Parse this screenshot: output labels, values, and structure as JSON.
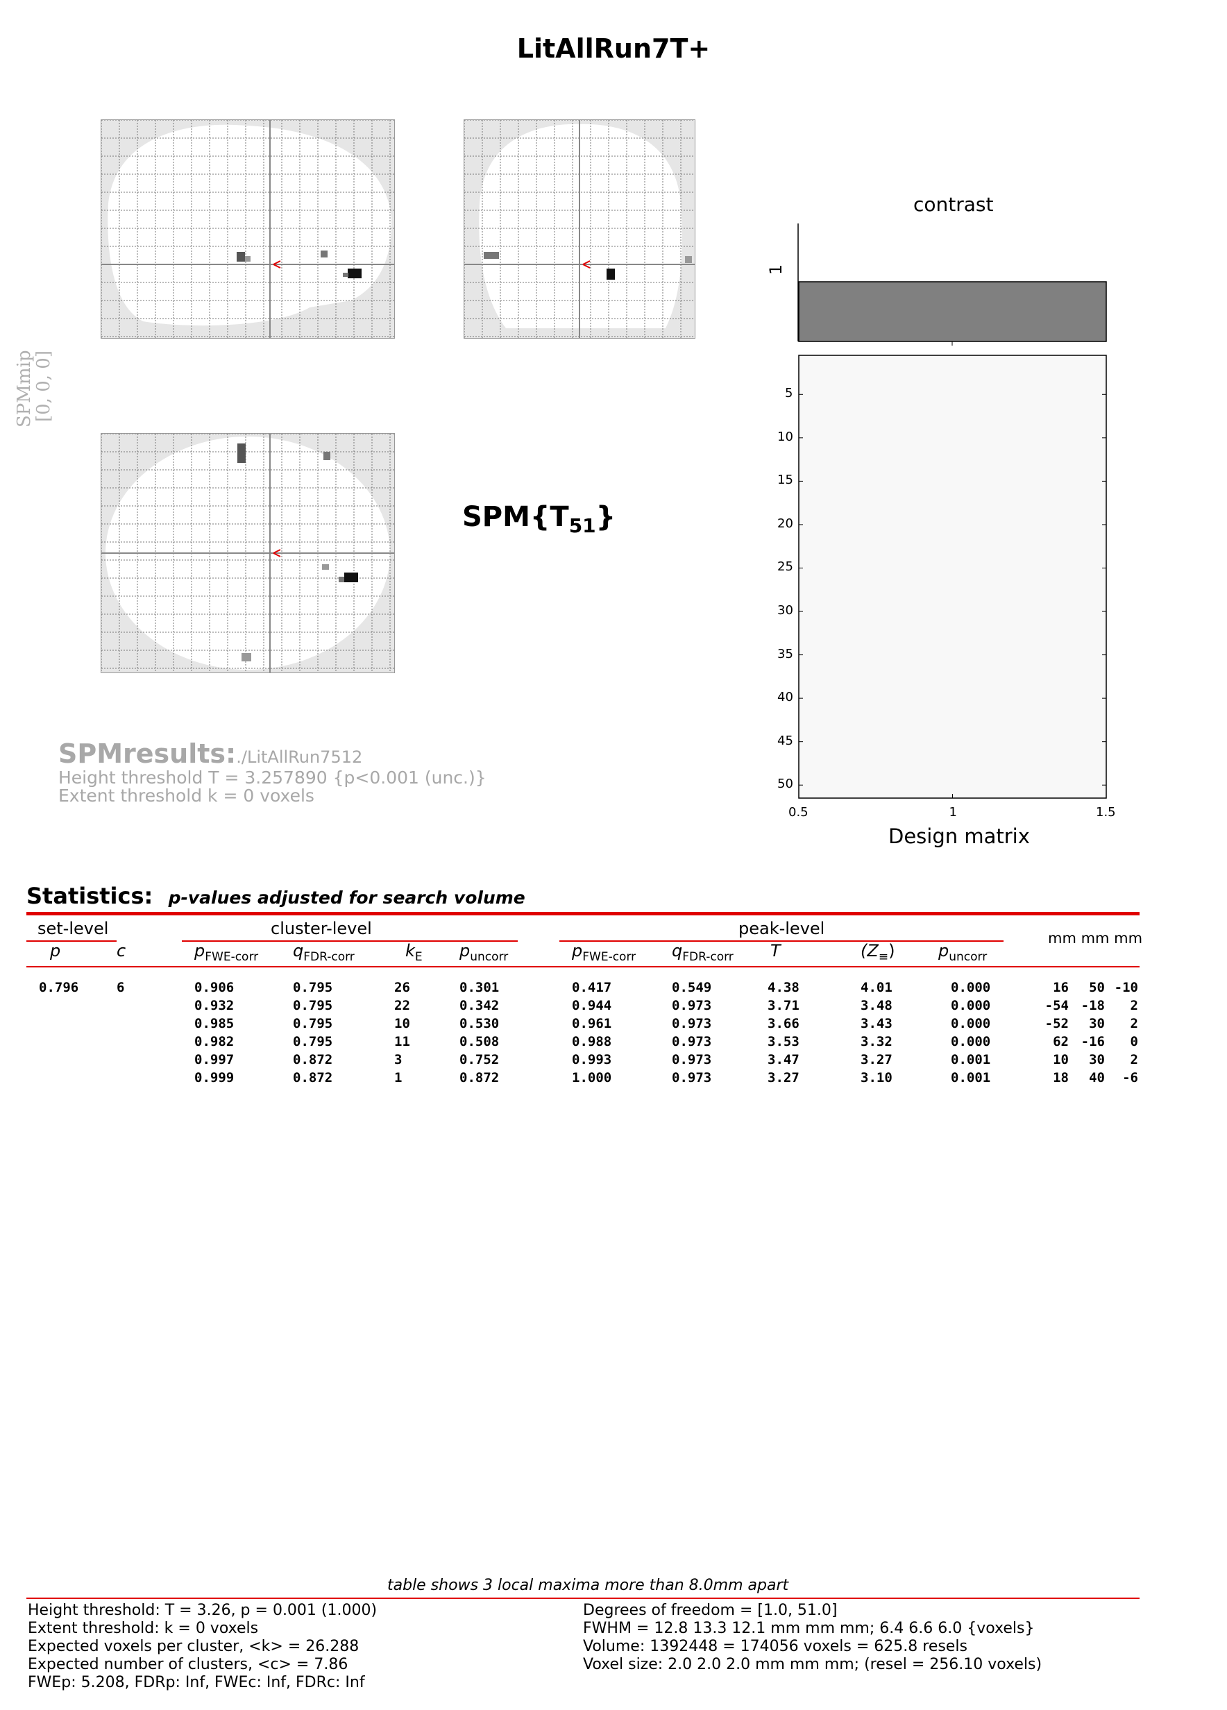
{
  "title": "LitAllRun7T+",
  "spm_mip_label": "SPMmip",
  "spm_mip_coords": "[0, 0, 0]",
  "spm_stat": {
    "name": "SPM{T",
    "df": "51",
    "close": "}"
  },
  "results": {
    "heading": "SPMresults:",
    "path": "./LitAllRun7512",
    "height_threshold": "Height threshold T = 3.257890  {p<0.001 (unc.)}",
    "extent_threshold": "Extent threshold k = 0 voxels"
  },
  "contrast_panel": {
    "title": "contrast",
    "contrast_tick": "1",
    "contrast_value": 1,
    "y_ticks": [
      "5",
      "10",
      "15",
      "20",
      "25",
      "30",
      "35",
      "40",
      "45",
      "50"
    ],
    "x_ticks": [
      "0.5",
      "1",
      "1.5"
    ],
    "xlabel": "Design matrix"
  },
  "statistics": {
    "heading": "Statistics:",
    "subheading": "p-values adjusted for search volume",
    "groups": {
      "set": "set-level",
      "cluster": "cluster-level",
      "peak": "peak-level",
      "coords": "mm mm mm"
    },
    "cols": {
      "set_p": "p",
      "set_c": "c",
      "cl_pfwe": "p",
      "cl_pfwe_sub": "FWE-corr",
      "cl_qfdr": "q",
      "cl_qfdr_sub": "FDR-corr",
      "cl_ke": "k",
      "cl_ke_sub": "E",
      "cl_punc": "p",
      "cl_punc_sub": "uncorr",
      "pk_pfwe": "p",
      "pk_pfwe_sub": "FWE-corr",
      "pk_qfdr": "q",
      "pk_qfdr_sub": "FDR-corr",
      "pk_t": "T",
      "pk_z": "(Z",
      "pk_z_sub": "≡",
      "pk_z_close": ")",
      "pk_punc": "p",
      "pk_punc_sub": "uncorr"
    },
    "set_level": {
      "p": "0.796",
      "c": "6"
    },
    "rows": [
      {
        "cl_pfwe": "0.906",
        "cl_qfdr": "0.795",
        "ke": "26",
        "cl_punc": "0.301",
        "pk_pfwe": "0.417",
        "pk_qfdr": "0.549",
        "t": "4.38",
        "z": "4.01",
        "pk_punc": "0.000",
        "x": "16",
        "y": "50",
        "zc": "-10"
      },
      {
        "cl_pfwe": "0.932",
        "cl_qfdr": "0.795",
        "ke": "22",
        "cl_punc": "0.342",
        "pk_pfwe": "0.944",
        "pk_qfdr": "0.973",
        "t": "3.71",
        "z": "3.48",
        "pk_punc": "0.000",
        "x": "-54",
        "y": "-18",
        "zc": "2"
      },
      {
        "cl_pfwe": "0.985",
        "cl_qfdr": "0.795",
        "ke": "10",
        "cl_punc": "0.530",
        "pk_pfwe": "0.961",
        "pk_qfdr": "0.973",
        "t": "3.66",
        "z": "3.43",
        "pk_punc": "0.000",
        "x": "-52",
        "y": "30",
        "zc": "2"
      },
      {
        "cl_pfwe": "0.982",
        "cl_qfdr": "0.795",
        "ke": "11",
        "cl_punc": "0.508",
        "pk_pfwe": "0.988",
        "pk_qfdr": "0.973",
        "t": "3.53",
        "z": "3.32",
        "pk_punc": "0.000",
        "x": "62",
        "y": "-16",
        "zc": "0"
      },
      {
        "cl_pfwe": "0.997",
        "cl_qfdr": "0.872",
        "ke": "3",
        "cl_punc": "0.752",
        "pk_pfwe": "0.993",
        "pk_qfdr": "0.973",
        "t": "3.47",
        "z": "3.27",
        "pk_punc": "0.001",
        "x": "10",
        "y": "30",
        "zc": "2"
      },
      {
        "cl_pfwe": "0.999",
        "cl_qfdr": "0.872",
        "ke": "1",
        "cl_punc": "0.872",
        "pk_pfwe": "1.000",
        "pk_qfdr": "0.973",
        "t": "3.27",
        "z": "3.10",
        "pk_punc": "0.001",
        "x": "18",
        "y": "40",
        "zc": "-6"
      }
    ]
  },
  "footer": {
    "caption": "table shows 3 local maxima more than 8.0mm apart",
    "left": [
      "Height threshold: T = 3.26, p = 0.001 (1.000)",
      "Extent threshold: k = 0 voxels",
      "Expected voxels per cluster, <k> = 26.288",
      "Expected number of clusters, <c> = 7.86",
      "FWEp: 5.208, FDRp: Inf, FWEc: Inf, FDRc: Inf"
    ],
    "right": [
      "Degrees of freedom = [1.0, 51.0]",
      "FWHM = 12.8 13.3 12.1 mm mm mm; 6.4 6.6 6.0 {voxels}",
      "Volume: 1392448 = 174056 voxels = 625.8 resels",
      "Voxel size: 2.0 2.0 2.0 mm mm mm; (resel = 256.10 voxels)"
    ]
  },
  "colors": {
    "accent_red": "#e00000",
    "contrast_bar": "#808080",
    "grey_text": "#a8a8a8"
  }
}
